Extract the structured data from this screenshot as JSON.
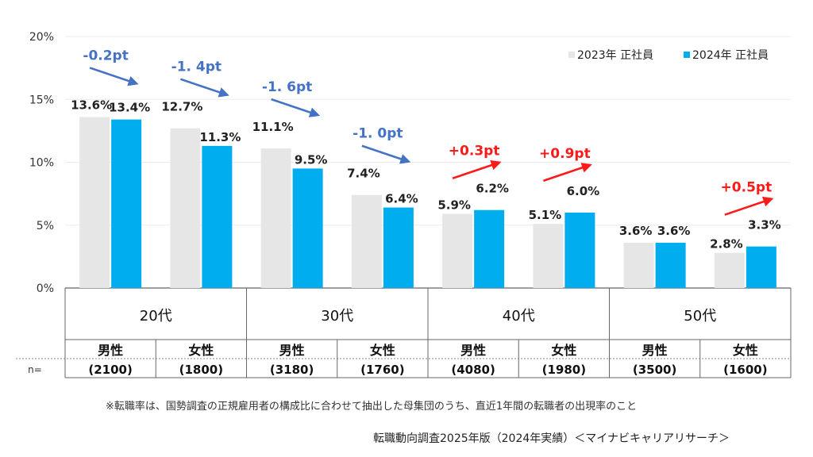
{
  "chart_data": {
    "type": "bar",
    "y_ticks": [
      "20%",
      "15%",
      "10%",
      "5%",
      "0%"
    ],
    "ylim": [
      0,
      20
    ],
    "grid": true,
    "legend_position": "top-right",
    "series": [
      {
        "name": "2023年 正社員",
        "color": "#e6e6e6",
        "values": [
          13.6,
          12.7,
          11.1,
          7.4,
          5.9,
          5.1,
          3.6,
          2.8
        ],
        "labels": [
          "13.6%",
          "12.7%",
          "11.1%",
          "7.4%",
          "5.9%",
          "5.1%",
          "3.6%",
          "2.8%"
        ]
      },
      {
        "name": "2024年 正社員",
        "color": "#00aeef",
        "values": [
          13.4,
          11.3,
          9.5,
          6.4,
          6.2,
          6.0,
          3.6,
          3.3
        ],
        "labels": [
          "13.4%",
          "11.3%",
          "9.5%",
          "6.4%",
          "6.2%",
          "6.0%",
          "3.6%",
          "3.3%"
        ]
      }
    ],
    "age_groups": [
      "20代",
      "30代",
      "40代",
      "50代"
    ],
    "genders": [
      "男性",
      "女性",
      "男性",
      "女性",
      "男性",
      "女性",
      "男性",
      "女性"
    ],
    "n_label": "n=",
    "n_values": [
      "(2100)",
      "(1800)",
      "(3180)",
      "(1760)",
      "(4080)",
      "(1980)",
      "(3500)",
      "(1600)"
    ],
    "annotations": [
      {
        "text": "-0.2pt",
        "direction": "down",
        "color": "#4472c4"
      },
      {
        "text": "-1. 4pt",
        "direction": "down",
        "color": "#4472c4"
      },
      {
        "text": "-1. 6pt",
        "direction": "down",
        "color": "#4472c4"
      },
      {
        "text": "-1. 0pt",
        "direction": "down",
        "color": "#4472c4"
      },
      {
        "text": "+0.3pt",
        "direction": "up",
        "color": "#ff1a1a"
      },
      {
        "text": "+0.9pt",
        "direction": "up",
        "color": "#ff1a1a"
      },
      {
        "text": "",
        "direction": "none",
        "color": "#4472c4"
      },
      {
        "text": "+0.5pt",
        "direction": "up",
        "color": "#ff1a1a"
      }
    ],
    "footnote": "※転職率は、国勢調査の正規雇用者の構成比に合わせて抽出した母集団のうち、直近1年間の転職者の出現率のこと"
  },
  "source": "転職動向調査2025年版（2024年実績）＜マイナビキャリアリサーチ＞"
}
